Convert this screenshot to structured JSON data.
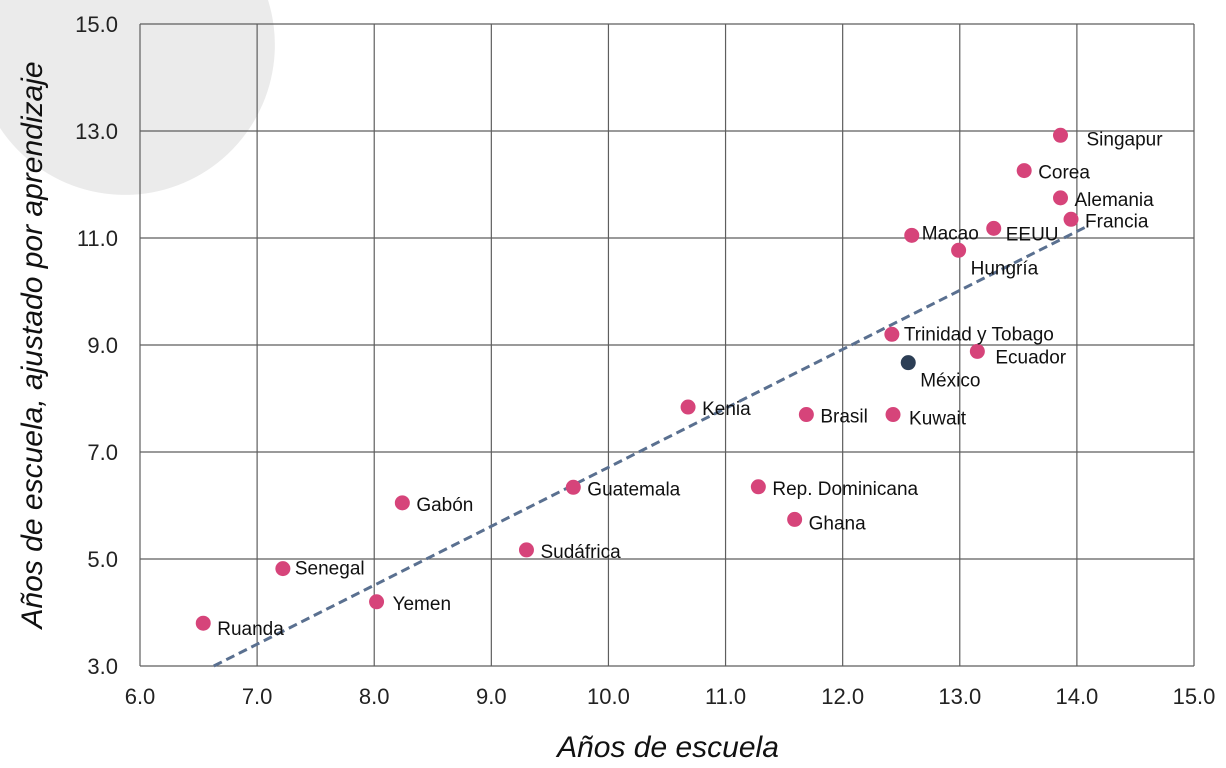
{
  "chart_data": {
    "type": "scatter",
    "xlabel": "Años de escuela",
    "ylabel": "Años de escuela, ajustado por aprendizaje",
    "xlim": [
      6.0,
      15.0
    ],
    "ylim": [
      3.0,
      15.0
    ],
    "xticks": [
      "6.0",
      "7.0",
      "8.0",
      "9.0",
      "10.0",
      "11.0",
      "12.0",
      "13.0",
      "14.0",
      "15.0"
    ],
    "yticks": [
      "3.0",
      "5.0",
      "7.0",
      "9.0",
      "11.0",
      "13.0",
      "15.0"
    ],
    "grid": true,
    "colors": {
      "points": "#d6447a",
      "highlight": "#2c3e55",
      "trendline": "#5a7090",
      "grid": "#5e5e5e"
    },
    "points": [
      {
        "label": "Ruanda",
        "x": 6.54,
        "y": 3.8
      },
      {
        "label": "Senegal",
        "x": 7.22,
        "y": 4.82
      },
      {
        "label": "Yemen",
        "x": 8.02,
        "y": 4.2
      },
      {
        "label": "Gabón",
        "x": 8.24,
        "y": 6.05
      },
      {
        "label": "Sudáfrica",
        "x": 9.3,
        "y": 5.17
      },
      {
        "label": "Guatemala",
        "x": 9.7,
        "y": 6.34
      },
      {
        "label": "Kenia",
        "x": 10.68,
        "y": 7.84
      },
      {
        "label": "Rep. Dominicana",
        "x": 11.28,
        "y": 6.35
      },
      {
        "label": "Ghana",
        "x": 11.59,
        "y": 5.74
      },
      {
        "label": "Brasil",
        "x": 11.69,
        "y": 7.7
      },
      {
        "label": "Kuwait",
        "x": 12.43,
        "y": 7.7
      },
      {
        "label": "Trinidad y Tobago",
        "x": 12.42,
        "y": 9.2
      },
      {
        "label": "México",
        "x": 12.56,
        "y": 8.67,
        "highlight": true
      },
      {
        "label": "Ecuador",
        "x": 13.15,
        "y": 8.88
      },
      {
        "label": "Macao",
        "x": 12.59,
        "y": 11.05
      },
      {
        "label": "Hungría",
        "x": 12.99,
        "y": 10.77
      },
      {
        "label": "EEUU",
        "x": 13.29,
        "y": 11.18
      },
      {
        "label": "Corea",
        "x": 13.55,
        "y": 12.26
      },
      {
        "label": "Alemania",
        "x": 13.86,
        "y": 11.75
      },
      {
        "label": "Francia",
        "x": 13.95,
        "y": 11.35
      },
      {
        "label": "Singapur",
        "x": 13.86,
        "y": 12.92
      }
    ],
    "trendline": {
      "x": [
        6.63,
        14.07
      ],
      "y": [
        3.0,
        11.2
      ]
    }
  }
}
